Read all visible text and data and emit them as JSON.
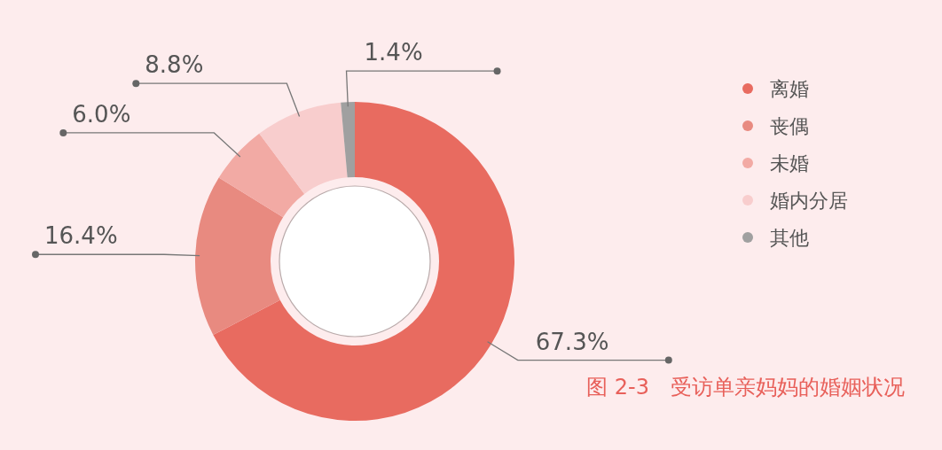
{
  "chart_data": {
    "type": "donut",
    "title": "图 2-3　受访单亲妈妈的婚姻状况",
    "categories": [
      "离婚",
      "丧偶",
      "未婚",
      "婚内分居",
      "其他"
    ],
    "values": [
      67.3,
      16.4,
      6.0,
      8.8,
      1.4
    ],
    "colors": [
      "#e86b60",
      "#e88a80",
      "#f2aaa4",
      "#f8cdcd",
      "#a0a0a0"
    ],
    "value_labels": [
      "67.3%",
      "16.4%",
      "6.0%",
      "8.8%",
      "1.4%"
    ],
    "legend": "right"
  }
}
